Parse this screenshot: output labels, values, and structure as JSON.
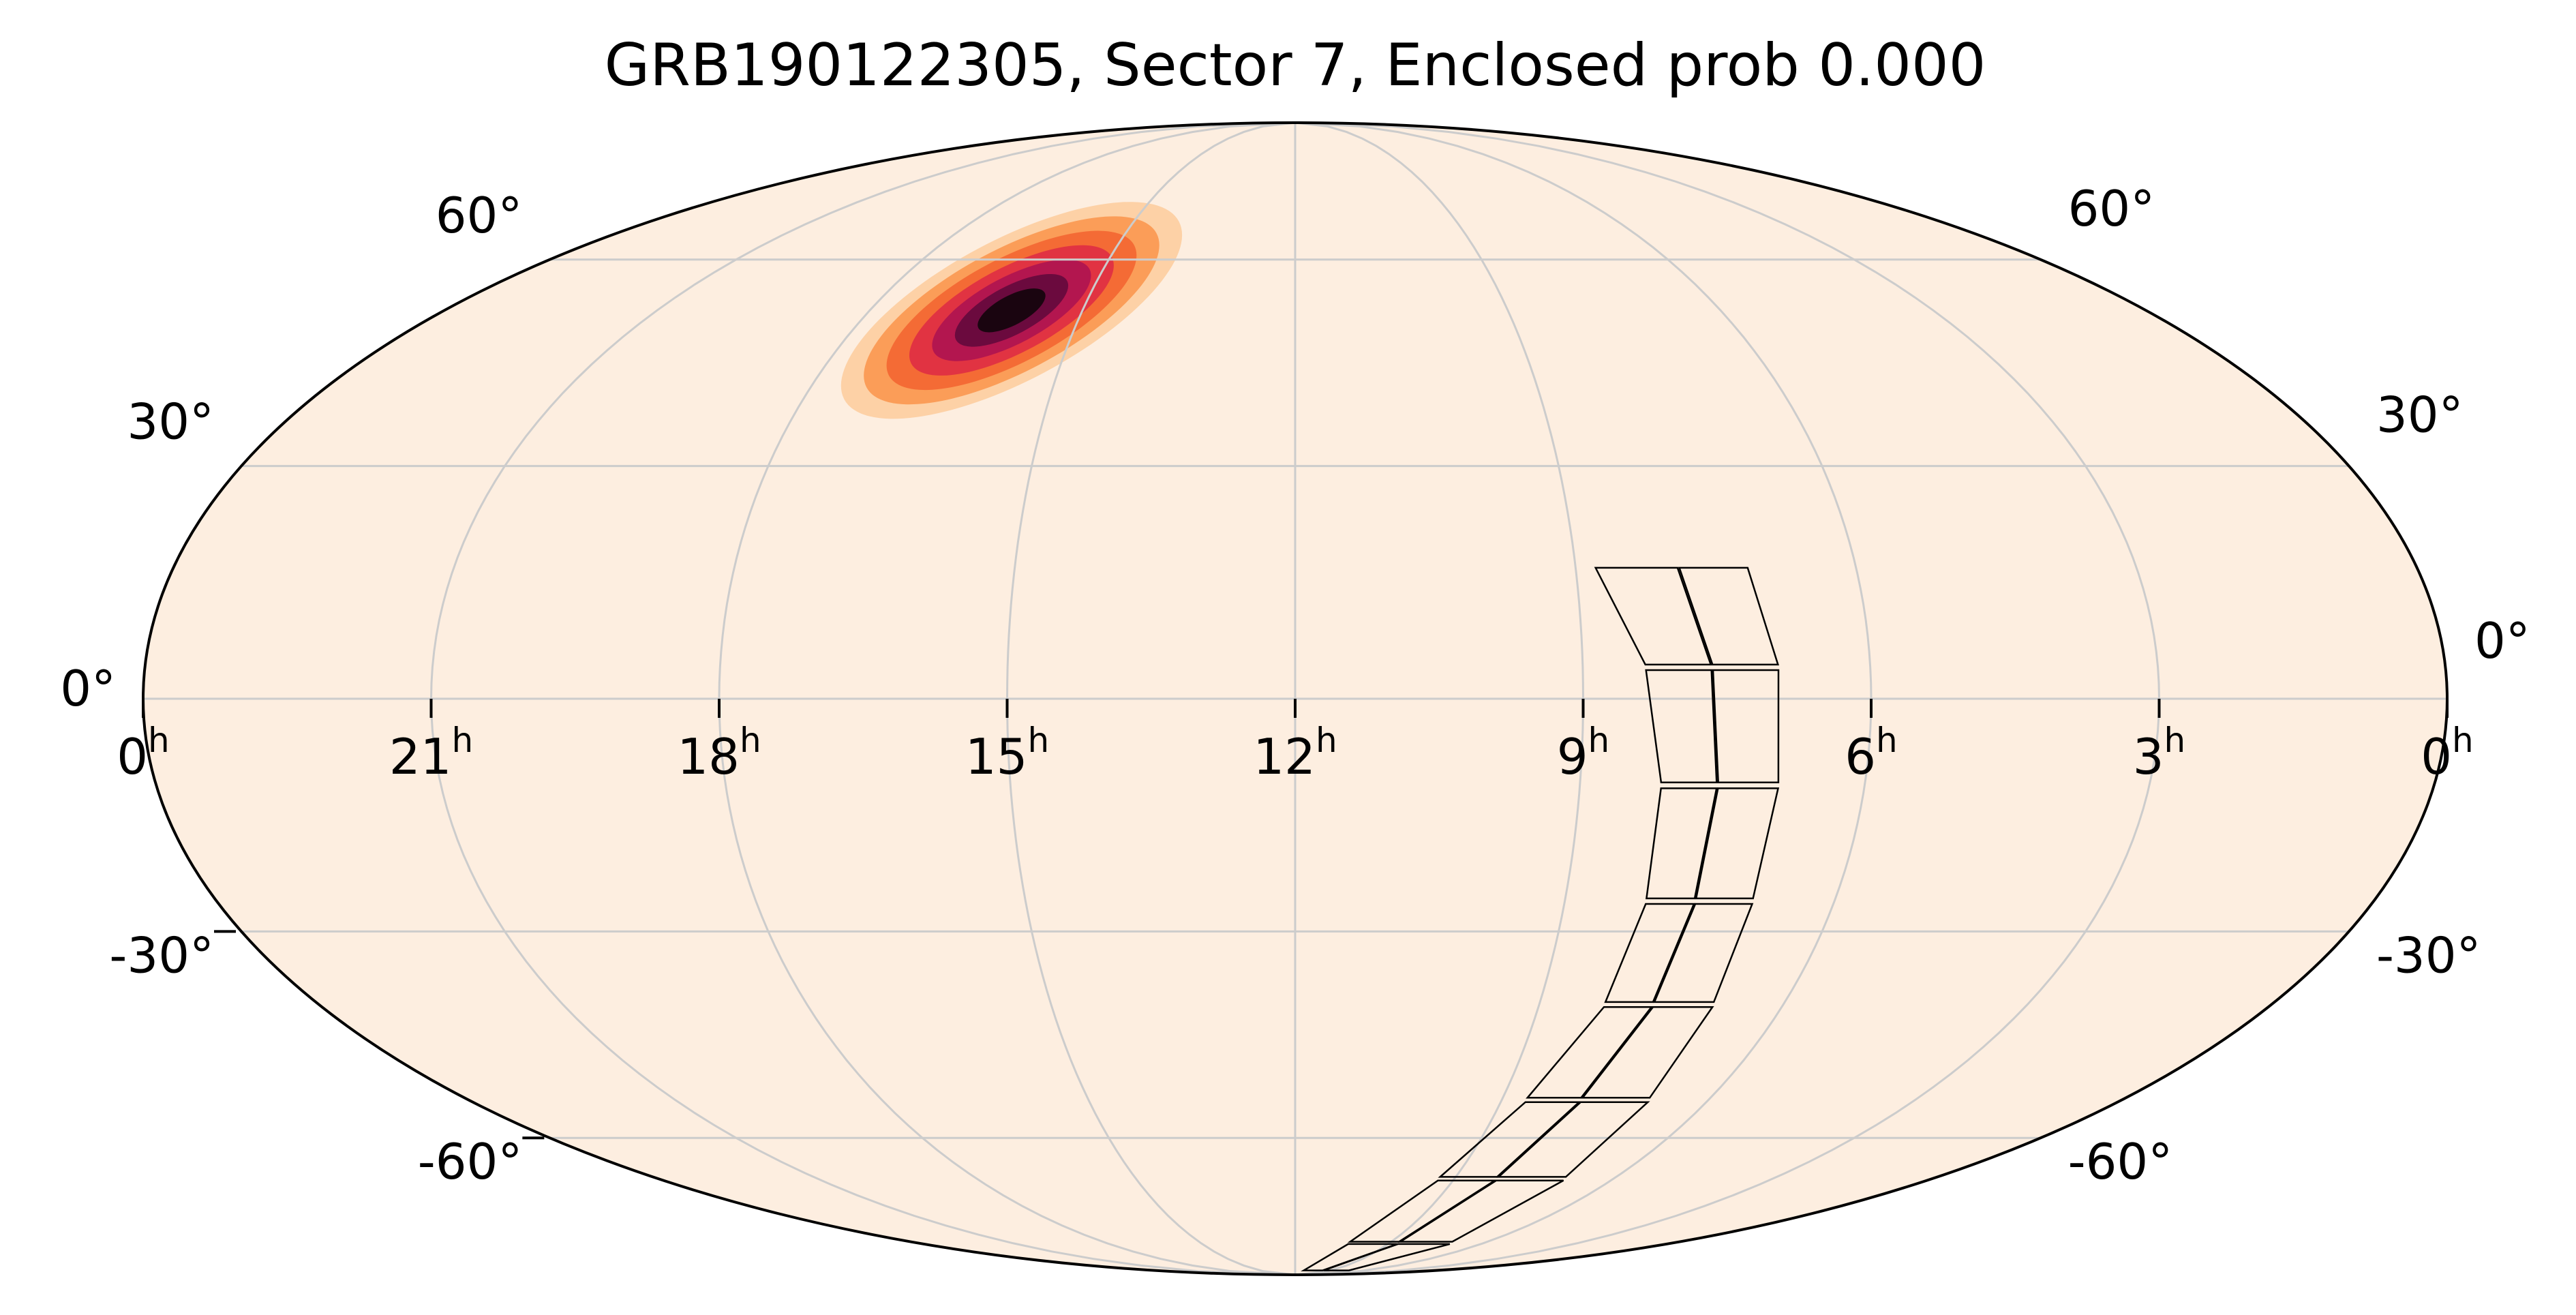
{
  "chart_data": {
    "type": "heatmap",
    "projection": "mollweide",
    "title": "GRB190122305, Sector 7, Enclosed prob 0.000",
    "grid": true,
    "ra_ticks": [
      {
        "hour": 24,
        "label": "0",
        "unit": "h"
      },
      {
        "hour": 21,
        "label": "21",
        "unit": "h"
      },
      {
        "hour": 18,
        "label": "18",
        "unit": "h"
      },
      {
        "hour": 15,
        "label": "15",
        "unit": "h"
      },
      {
        "hour": 12,
        "label": "12",
        "unit": "h"
      },
      {
        "hour": 9,
        "label": "9",
        "unit": "h"
      },
      {
        "hour": 6,
        "label": "6",
        "unit": "h"
      },
      {
        "hour": 3,
        "label": "3",
        "unit": "h"
      },
      {
        "hour": 0,
        "label": "0",
        "unit": "h"
      }
    ],
    "dec_ticks": [
      {
        "dec": 60,
        "label": "60°"
      },
      {
        "dec": 30,
        "label": "30°"
      },
      {
        "dec": 0,
        "label": "0°"
      },
      {
        "dec": -30,
        "label": "-30°"
      },
      {
        "dec": -60,
        "label": "-60°"
      }
    ],
    "probability_peak": {
      "ra_hours": 16.0,
      "dec_deg": 52
    },
    "colors": {
      "background": "#fdeee0",
      "grid": "#cccccc",
      "outline": "#000000",
      "footprint": "#000000",
      "heat_stops": [
        "#fdeee0",
        "#fdd1a6",
        "#fb9d58",
        "#f46b35",
        "#e13342",
        "#b3164f",
        "#6b0a3e",
        "#1a0510"
      ]
    },
    "footprint": {
      "sector": 7,
      "ccd_grid": [
        4,
        8
      ],
      "corner_ra_hours": [
        [
          8.8,
          7.9,
          7.15
        ],
        [
          8.35,
          7.65,
          6.95
        ],
        [
          8.15,
          7.55,
          6.9
        ],
        [
          8.1,
          7.55,
          6.9
        ],
        [
          8.2,
          7.6,
          6.85
        ],
        [
          8.65,
          7.85,
          6.85
        ],
        [
          9.3,
          8.2,
          6.9
        ],
        [
          10.3,
          8.7,
          7.0
        ],
        [
          11.3,
          9.5,
          7.1
        ]
      ],
      "corner_dec_deg": [
        17,
        4,
        -11,
        -26,
        -40,
        -54,
        -67,
        -80,
        -88
      ]
    }
  }
}
